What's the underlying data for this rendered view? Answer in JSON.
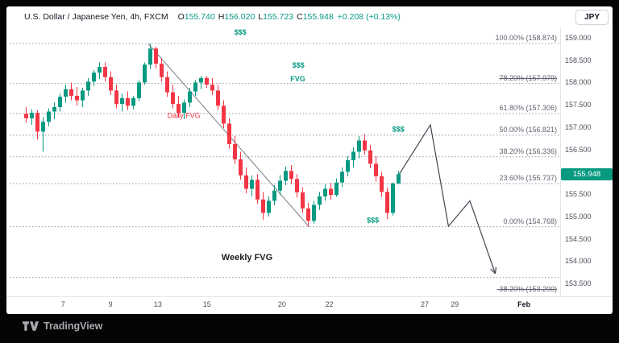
{
  "header": {
    "symbol": "U.S. Dollar / Japanese Yen, 4h, FXCM",
    "open_label": "O",
    "open": "155.740",
    "high_label": "H",
    "high": "156.020",
    "low_label": "L",
    "low": "155.723",
    "close_label": "C",
    "close": "155.948",
    "change": "+0.208 (+0.13%)",
    "currency_button": "JPY"
  },
  "footer": {
    "logo_text": "TradingView"
  },
  "chart_data": {
    "type": "candlestick",
    "title": "U.S. Dollar / Japanese Yen, 4h, FXCM",
    "timeframe": "4h",
    "colors": {
      "up": "#089981",
      "down": "#f23645",
      "badge": "#089981",
      "projection": "#42464e",
      "trendline": "#787b86",
      "fib_line": "#9598a1"
    },
    "price_range": {
      "min": 153.5,
      "max": 159.0,
      "tick": 0.5
    },
    "last_price": "155.948",
    "price_ticks": [
      "159.000",
      "158.500",
      "158.000",
      "157.500",
      "157.000",
      "156.500",
      "156.000",
      "155.500",
      "155.000",
      "154.500",
      "154.000",
      "153.500"
    ],
    "time_ticks": [
      {
        "label": "7",
        "i": 6.9
      },
      {
        "label": "9",
        "i": 15.3
      },
      {
        "label": "13",
        "i": 23.7
      },
      {
        "label": "15",
        "i": 32.4
      },
      {
        "label": "20",
        "i": 45.7
      },
      {
        "label": "22",
        "i": 54.1
      },
      {
        "label": "27",
        "i": 71.0
      },
      {
        "label": "29",
        "i": 76.3
      },
      {
        "label": "Feb",
        "i": 88.6,
        "major": true
      }
    ],
    "fib_levels": [
      {
        "label": "100.00% (158.874)",
        "price": 158.874,
        "strike": false
      },
      {
        "label": "78.20% (157.979)",
        "price": 157.979,
        "strike": true
      },
      {
        "label": "61.80% (157.306)",
        "price": 157.306,
        "strike": false
      },
      {
        "label": "50.00% (156.821)",
        "price": 156.821,
        "strike": false
      },
      {
        "label": "38.20% (156.336)",
        "price": 156.336,
        "strike": false
      },
      {
        "label": "23.60% (155.737)",
        "price": 155.737,
        "strike": false
      },
      {
        "label": "0.00% (154.768)",
        "price": 154.768,
        "strike": false
      },
      {
        "label": "-38.20% (153.200)",
        "price": 153.2,
        "strike": true,
        "label_only": true
      }
    ],
    "extra_lines": [
      {
        "name": "weekly-fvg-line",
        "price": 153.63
      }
    ],
    "trendline": {
      "from": {
        "i": 22,
        "price": 158.87
      },
      "to": {
        "i": 50.5,
        "price": 154.77
      }
    },
    "projection": [
      {
        "i": 66.5,
        "price": 155.95
      },
      {
        "i": 72,
        "price": 157.05
      },
      {
        "i": 75.2,
        "price": 154.78
      },
      {
        "i": 79,
        "price": 155.35
      },
      {
        "i": 83.5,
        "price": 153.72
      }
    ],
    "annotations": [
      {
        "text": "$$$",
        "i": 38.3,
        "price": 159.07,
        "color": "#089981",
        "size": 9,
        "bold": true
      },
      {
        "text": "$$$",
        "i": 48.6,
        "price": 158.33,
        "color": "#089981",
        "size": 9,
        "bold": true
      },
      {
        "text": "FVG",
        "i": 48.5,
        "price": 158.03,
        "color": "#089981",
        "size": 9,
        "bold": true
      },
      {
        "text": "Daily FVG",
        "i": 28.3,
        "price": 157.21,
        "color": "#f23645",
        "size": 9,
        "bold": false
      },
      {
        "text": "$$$",
        "i": 66.3,
        "price": 156.9,
        "color": "#089981",
        "size": 9,
        "bold": true
      },
      {
        "text": "$$$",
        "i": 61.8,
        "price": 154.86,
        "color": "#089981",
        "size": 9,
        "bold": true
      },
      {
        "text": "Weekly FVG",
        "i": 39.5,
        "price": 154.02,
        "color": "#1c1e23",
        "size": 11,
        "bold": true
      }
    ],
    "candles": [
      [
        157.3,
        157.45,
        157.1,
        157.2
      ],
      [
        157.2,
        157.4,
        157.05,
        157.32
      ],
      [
        157.32,
        157.38,
        156.72,
        156.9
      ],
      [
        156.9,
        157.22,
        156.45,
        157.12
      ],
      [
        157.12,
        157.42,
        157.02,
        157.35
      ],
      [
        157.35,
        157.55,
        157.18,
        157.45
      ],
      [
        157.45,
        157.75,
        157.35,
        157.68
      ],
      [
        157.68,
        157.95,
        157.55,
        157.85
      ],
      [
        157.85,
        158.0,
        157.6,
        157.7
      ],
      [
        157.7,
        157.9,
        157.48,
        157.6
      ],
      [
        157.6,
        157.88,
        157.45,
        157.82
      ],
      [
        157.82,
        158.1,
        157.7,
        158.02
      ],
      [
        158.02,
        158.28,
        157.92,
        158.22
      ],
      [
        158.22,
        158.45,
        158.08,
        158.35
      ],
      [
        158.35,
        158.45,
        158.02,
        158.12
      ],
      [
        158.12,
        158.25,
        157.72,
        157.82
      ],
      [
        157.82,
        157.95,
        157.42,
        157.52
      ],
      [
        157.52,
        157.75,
        157.35,
        157.65
      ],
      [
        157.65,
        157.8,
        157.38,
        157.48
      ],
      [
        157.48,
        157.7,
        157.4,
        157.65
      ],
      [
        157.65,
        158.05,
        157.58,
        158.0
      ],
      [
        158.0,
        158.45,
        157.95,
        158.4
      ],
      [
        158.4,
        158.87,
        158.3,
        158.76
      ],
      [
        158.76,
        158.8,
        158.32,
        158.42
      ],
      [
        158.42,
        158.55,
        158.02,
        158.12
      ],
      [
        158.12,
        158.25,
        157.68,
        157.78
      ],
      [
        157.78,
        157.95,
        157.42,
        157.52
      ],
      [
        157.52,
        157.7,
        157.22,
        157.32
      ],
      [
        157.32,
        157.62,
        157.18,
        157.55
      ],
      [
        157.55,
        157.88,
        157.45,
        157.8
      ],
      [
        157.8,
        158.05,
        157.7,
        158.0
      ],
      [
        158.0,
        158.15,
        157.85,
        158.1
      ],
      [
        158.1,
        158.15,
        157.88,
        157.95
      ],
      [
        157.95,
        158.1,
        157.72,
        157.82
      ],
      [
        157.82,
        157.95,
        157.38,
        157.48
      ],
      [
        157.48,
        157.6,
        156.98,
        157.08
      ],
      [
        157.08,
        157.2,
        156.52,
        156.62
      ],
      [
        156.62,
        156.8,
        156.18,
        156.28
      ],
      [
        156.28,
        156.45,
        155.82,
        155.92
      ],
      [
        155.92,
        156.1,
        155.52,
        155.62
      ],
      [
        155.62,
        155.92,
        155.45,
        155.82
      ],
      [
        155.82,
        155.95,
        155.28,
        155.38
      ],
      [
        155.38,
        155.55,
        154.93,
        155.08
      ],
      [
        155.08,
        155.45,
        155.0,
        155.35
      ],
      [
        155.35,
        155.7,
        155.25,
        155.58
      ],
      [
        155.58,
        155.92,
        155.48,
        155.8
      ],
      [
        155.8,
        156.12,
        155.7,
        156.02
      ],
      [
        156.02,
        156.15,
        155.72,
        155.84
      ],
      [
        155.84,
        155.95,
        155.42,
        155.54
      ],
      [
        155.54,
        155.65,
        155.08,
        155.18
      ],
      [
        155.18,
        155.3,
        154.77,
        154.9
      ],
      [
        154.9,
        155.35,
        154.84,
        155.26
      ],
      [
        155.26,
        155.55,
        155.15,
        155.45
      ],
      [
        155.45,
        155.72,
        155.35,
        155.62
      ],
      [
        155.62,
        155.75,
        155.38,
        155.48
      ],
      [
        155.48,
        155.85,
        155.44,
        155.76
      ],
      [
        155.76,
        156.1,
        155.66,
        156.0
      ],
      [
        156.0,
        156.35,
        155.9,
        156.26
      ],
      [
        156.26,
        156.55,
        156.1,
        156.45
      ],
      [
        156.45,
        156.8,
        156.3,
        156.7
      ],
      [
        156.7,
        156.85,
        156.38,
        156.48
      ],
      [
        156.48,
        156.6,
        156.08,
        156.18
      ],
      [
        156.18,
        156.35,
        155.78,
        155.9
      ],
      [
        155.9,
        156.0,
        155.44,
        155.55
      ],
      [
        155.55,
        155.65,
        154.94,
        155.08
      ],
      [
        155.08,
        155.76,
        155.02,
        155.74
      ],
      [
        155.74,
        156.02,
        155.723,
        155.948
      ]
    ]
  }
}
